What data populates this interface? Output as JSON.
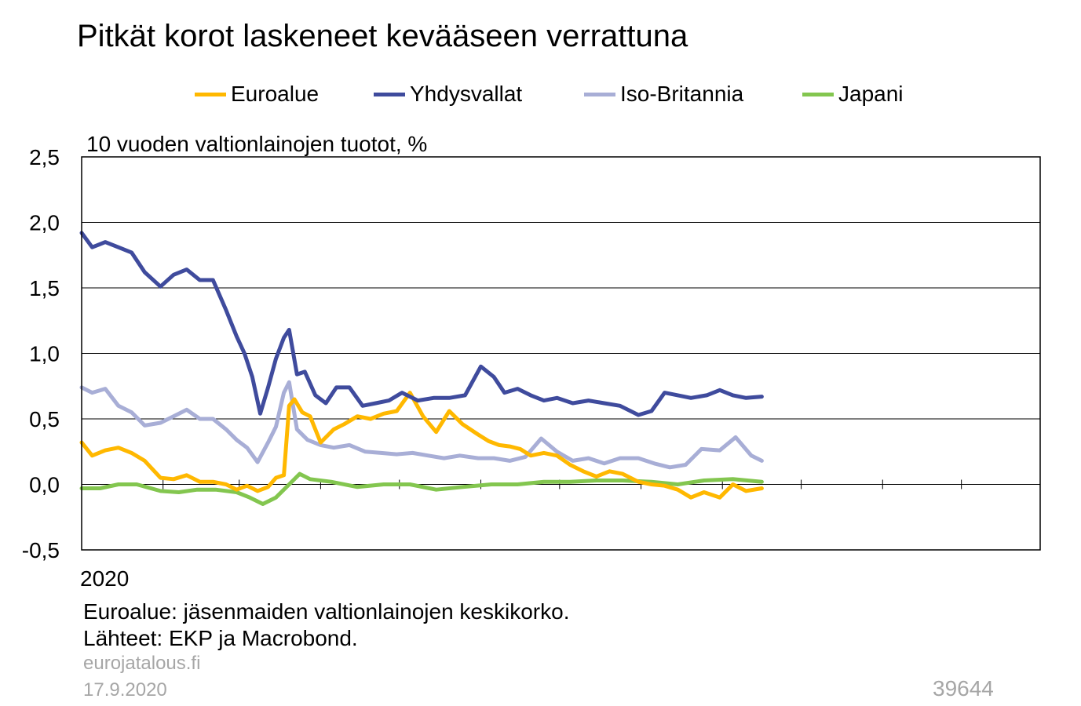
{
  "title": "Pitkät korot laskeneet kevääseen verrattuna",
  "unit_label": "10 vuoden valtionlainojen tuotot, %",
  "legend": [
    {
      "label": "Euroalue",
      "color": "#ffb800"
    },
    {
      "label": "Yhdysvallat",
      "color": "#3f4b9d"
    },
    {
      "label": "Iso-Britannia",
      "color": "#a8aed6"
    },
    {
      "label": "Japani",
      "color": "#83c64f"
    }
  ],
  "footnotes": {
    "note1": "Euroalue: jäsenmaiden valtionlainojen keskikorko.",
    "note2": "Lähteet: EKP ja Macrobond.",
    "site": "eurojatalous.fi",
    "date": "17.9.2020",
    "code": "39644"
  },
  "chart_data": {
    "type": "line",
    "title": "Pitkät korot laskeneet kevääseen verrattuna",
    "ylabel": "10 vuoden valtionlainojen tuotot, %",
    "xlabel": "2020",
    "ylim": [
      -0.5,
      2.5
    ],
    "yticks": [
      "-0,5",
      "0,0",
      "0,5",
      "1,0",
      "1,5",
      "2,0",
      "2,5"
    ],
    "ytick_values": [
      -0.5,
      0,
      0.5,
      1.0,
      1.5,
      2.0,
      2.5
    ],
    "x_range": [
      "2020-01-01",
      "2020-12-31"
    ],
    "grid": "horizontal",
    "legend_position": "top",
    "series": [
      {
        "name": "Euroalue",
        "color": "#ffb800",
        "x": [
          "2020-01-01",
          "2020-01-05",
          "2020-01-10",
          "2020-01-15",
          "2020-01-20",
          "2020-01-25",
          "2020-01-31",
          "2020-02-05",
          "2020-02-10",
          "2020-02-15",
          "2020-02-20",
          "2020-02-25",
          "2020-02-29",
          "2020-03-04",
          "2020-03-08",
          "2020-03-12",
          "2020-03-15",
          "2020-03-18",
          "2020-03-20",
          "2020-03-22",
          "2020-03-25",
          "2020-03-28",
          "2020-04-01",
          "2020-04-06",
          "2020-04-10",
          "2020-04-15",
          "2020-04-20",
          "2020-04-25",
          "2020-04-30",
          "2020-05-05",
          "2020-05-10",
          "2020-05-15",
          "2020-05-20",
          "2020-05-25",
          "2020-05-31",
          "2020-06-04",
          "2020-06-08",
          "2020-06-12",
          "2020-06-16",
          "2020-06-20",
          "2020-06-25",
          "2020-06-30",
          "2020-07-05",
          "2020-07-10",
          "2020-07-15",
          "2020-07-20",
          "2020-07-25",
          "2020-07-31",
          "2020-08-05",
          "2020-08-10",
          "2020-08-15",
          "2020-08-20",
          "2020-08-25",
          "2020-08-31",
          "2020-09-05",
          "2020-09-10",
          "2020-09-16"
        ],
        "values": [
          0.32,
          0.22,
          0.26,
          0.28,
          0.24,
          0.18,
          0.05,
          0.04,
          0.07,
          0.02,
          0.02,
          0.0,
          -0.04,
          -0.01,
          -0.05,
          -0.02,
          0.05,
          0.07,
          0.6,
          0.65,
          0.55,
          0.52,
          0.32,
          0.42,
          0.46,
          0.52,
          0.5,
          0.54,
          0.56,
          0.7,
          0.52,
          0.4,
          0.56,
          0.46,
          0.38,
          0.33,
          0.3,
          0.29,
          0.27,
          0.22,
          0.24,
          0.22,
          0.15,
          0.1,
          0.06,
          0.1,
          0.08,
          0.02,
          0.0,
          -0.01,
          -0.04,
          -0.1,
          -0.06,
          -0.1,
          0.0,
          -0.05,
          -0.03
        ]
      },
      {
        "name": "Yhdysvallat",
        "color": "#3f4b9d",
        "x": [
          "2020-01-01",
          "2020-01-05",
          "2020-01-10",
          "2020-01-15",
          "2020-01-20",
          "2020-01-25",
          "2020-01-31",
          "2020-02-05",
          "2020-02-10",
          "2020-02-15",
          "2020-02-20",
          "2020-02-25",
          "2020-02-29",
          "2020-03-03",
          "2020-03-06",
          "2020-03-09",
          "2020-03-12",
          "2020-03-15",
          "2020-03-18",
          "2020-03-20",
          "2020-03-23",
          "2020-03-26",
          "2020-03-30",
          "2020-04-03",
          "2020-04-07",
          "2020-04-12",
          "2020-04-17",
          "2020-04-22",
          "2020-04-27",
          "2020-05-02",
          "2020-05-08",
          "2020-05-14",
          "2020-05-20",
          "2020-05-26",
          "2020-06-01",
          "2020-06-06",
          "2020-06-10",
          "2020-06-15",
          "2020-06-20",
          "2020-06-25",
          "2020-06-30",
          "2020-07-06",
          "2020-07-12",
          "2020-07-18",
          "2020-07-24",
          "2020-07-31",
          "2020-08-05",
          "2020-08-10",
          "2020-08-15",
          "2020-08-20",
          "2020-08-26",
          "2020-08-31",
          "2020-09-05",
          "2020-09-10",
          "2020-09-16"
        ],
        "values": [
          1.92,
          1.81,
          1.85,
          1.81,
          1.77,
          1.62,
          1.51,
          1.6,
          1.64,
          1.56,
          1.56,
          1.33,
          1.13,
          1.0,
          0.82,
          0.54,
          0.74,
          0.96,
          1.12,
          1.18,
          0.84,
          0.86,
          0.68,
          0.62,
          0.74,
          0.74,
          0.6,
          0.62,
          0.64,
          0.7,
          0.64,
          0.66,
          0.66,
          0.68,
          0.9,
          0.82,
          0.7,
          0.73,
          0.68,
          0.64,
          0.66,
          0.62,
          0.64,
          0.62,
          0.6,
          0.53,
          0.56,
          0.7,
          0.68,
          0.66,
          0.68,
          0.72,
          0.68,
          0.66,
          0.67
        ]
      },
      {
        "name": "Iso-Britannia",
        "color": "#a8aed6",
        "x": [
          "2020-01-01",
          "2020-01-05",
          "2020-01-10",
          "2020-01-15",
          "2020-01-20",
          "2020-01-25",
          "2020-01-31",
          "2020-02-05",
          "2020-02-10",
          "2020-02-15",
          "2020-02-20",
          "2020-02-25",
          "2020-02-29",
          "2020-03-04",
          "2020-03-08",
          "2020-03-12",
          "2020-03-15",
          "2020-03-18",
          "2020-03-20",
          "2020-03-23",
          "2020-03-27",
          "2020-04-01",
          "2020-04-06",
          "2020-04-12",
          "2020-04-18",
          "2020-04-24",
          "2020-04-30",
          "2020-05-06",
          "2020-05-12",
          "2020-05-18",
          "2020-05-24",
          "2020-05-31",
          "2020-06-06",
          "2020-06-12",
          "2020-06-18",
          "2020-06-24",
          "2020-06-30",
          "2020-07-06",
          "2020-07-12",
          "2020-07-18",
          "2020-07-24",
          "2020-07-31",
          "2020-08-06",
          "2020-08-12",
          "2020-08-18",
          "2020-08-24",
          "2020-08-31",
          "2020-09-06",
          "2020-09-12",
          "2020-09-16"
        ],
        "values": [
          0.74,
          0.7,
          0.73,
          0.6,
          0.55,
          0.45,
          0.47,
          0.52,
          0.57,
          0.5,
          0.5,
          0.42,
          0.34,
          0.28,
          0.17,
          0.32,
          0.44,
          0.7,
          0.78,
          0.42,
          0.34,
          0.3,
          0.28,
          0.3,
          0.25,
          0.24,
          0.23,
          0.24,
          0.22,
          0.2,
          0.22,
          0.2,
          0.2,
          0.18,
          0.21,
          0.35,
          0.25,
          0.18,
          0.2,
          0.16,
          0.2,
          0.2,
          0.16,
          0.13,
          0.15,
          0.27,
          0.26,
          0.36,
          0.22,
          0.18
        ]
      },
      {
        "name": "Japani",
        "color": "#83c64f",
        "x": [
          "2020-01-01",
          "2020-01-08",
          "2020-01-15",
          "2020-01-22",
          "2020-01-31",
          "2020-02-07",
          "2020-02-14",
          "2020-02-21",
          "2020-02-29",
          "2020-03-05",
          "2020-03-10",
          "2020-03-15",
          "2020-03-20",
          "2020-03-24",
          "2020-03-28",
          "2020-04-05",
          "2020-04-15",
          "2020-04-25",
          "2020-05-05",
          "2020-05-15",
          "2020-05-25",
          "2020-06-05",
          "2020-06-15",
          "2020-06-25",
          "2020-07-05",
          "2020-07-15",
          "2020-07-25",
          "2020-08-05",
          "2020-08-15",
          "2020-08-25",
          "2020-09-05",
          "2020-09-16"
        ],
        "values": [
          -0.03,
          -0.03,
          0.0,
          0.0,
          -0.05,
          -0.06,
          -0.04,
          -0.04,
          -0.06,
          -0.1,
          -0.15,
          -0.1,
          0.0,
          0.08,
          0.04,
          0.02,
          -0.02,
          0.0,
          0.0,
          -0.04,
          -0.02,
          0.0,
          0.0,
          0.02,
          0.02,
          0.03,
          0.03,
          0.02,
          0.0,
          0.03,
          0.04,
          0.02
        ]
      }
    ]
  }
}
